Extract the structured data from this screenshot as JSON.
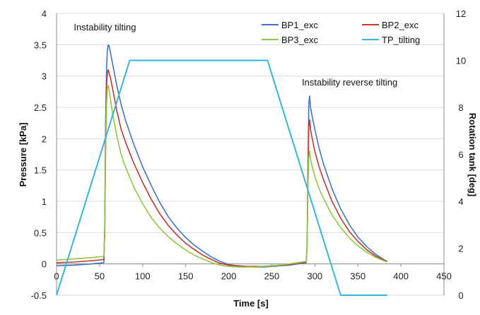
{
  "chart_data": {
    "type": "line",
    "title": "",
    "xlabel": "Time [s]",
    "ylabel": "Pressure [kPa]",
    "y2label": "Rotation tank [deg]",
    "xlim": [
      0,
      450
    ],
    "ylim": [
      -0.5,
      4
    ],
    "y2lim": [
      0,
      12
    ],
    "xticks": [
      0,
      50,
      100,
      150,
      200,
      250,
      300,
      350,
      400,
      450
    ],
    "yticks": [
      -0.5,
      0,
      0.5,
      1,
      1.5,
      2,
      2.5,
      3,
      3.5,
      4
    ],
    "yticklabels": [
      "-0.5",
      "0",
      "0.5",
      "1",
      "1.5",
      "2",
      "2.5",
      "3",
      "3.5",
      "4"
    ],
    "y2ticks": [
      0,
      2,
      4,
      6,
      8,
      10,
      12
    ],
    "grid": "horizontal",
    "legend_position": "top-right",
    "annotations": [
      {
        "text": "Instability tilting",
        "x": 20,
        "y": 3.73
      },
      {
        "text": "Instability reverse tilting",
        "x": 285,
        "y": 2.85
      }
    ],
    "series": [
      {
        "name": "BP1_exc",
        "color": "#4472c4",
        "axis": "left",
        "x": [
          0,
          20,
          40,
          55,
          56,
          57,
          58,
          59,
          60,
          61,
          63,
          65,
          70,
          75,
          80,
          90,
          100,
          110,
          120,
          130,
          140,
          150,
          160,
          170,
          180,
          190,
          200,
          210,
          220,
          230,
          240,
          250,
          260,
          270,
          280,
          290,
          291,
          292,
          293,
          294,
          295,
          297,
          300,
          305,
          310,
          320,
          330,
          340,
          350,
          360,
          370,
          380,
          384
        ],
        "y": [
          -0.03,
          -0.02,
          0.0,
          0.02,
          0.6,
          2.2,
          3.05,
          3.4,
          3.5,
          3.48,
          3.35,
          3.2,
          2.85,
          2.55,
          2.3,
          1.9,
          1.55,
          1.25,
          0.98,
          0.75,
          0.57,
          0.42,
          0.3,
          0.2,
          0.11,
          0.04,
          -0.01,
          -0.03,
          -0.04,
          -0.05,
          -0.05,
          -0.04,
          -0.03,
          -0.02,
          0.0,
          0.02,
          0.3,
          1.5,
          2.55,
          2.68,
          2.5,
          2.35,
          2.15,
          1.85,
          1.6,
          1.2,
          0.88,
          0.63,
          0.43,
          0.28,
          0.16,
          0.07,
          0.04
        ]
      },
      {
        "name": "BP2_exc",
        "color": "#c0392b",
        "axis": "left",
        "x": [
          0,
          20,
          40,
          55,
          56,
          57,
          58,
          59,
          60,
          61,
          63,
          65,
          70,
          75,
          80,
          90,
          100,
          110,
          120,
          130,
          140,
          150,
          160,
          170,
          180,
          190,
          200,
          210,
          220,
          230,
          240,
          250,
          260,
          270,
          280,
          290,
          291,
          292,
          293,
          294,
          295,
          297,
          300,
          305,
          310,
          320,
          330,
          340,
          350,
          360,
          370,
          380,
          384
        ],
        "y": [
          0.02,
          0.03,
          0.05,
          0.07,
          0.55,
          2.0,
          2.8,
          3.05,
          3.1,
          3.05,
          2.95,
          2.8,
          2.45,
          2.15,
          1.95,
          1.6,
          1.3,
          1.03,
          0.8,
          0.61,
          0.46,
          0.33,
          0.23,
          0.14,
          0.07,
          0.01,
          -0.02,
          -0.03,
          -0.04,
          -0.04,
          -0.04,
          -0.03,
          -0.02,
          -0.01,
          0.01,
          0.03,
          0.3,
          1.4,
          2.2,
          2.3,
          2.15,
          2.0,
          1.8,
          1.55,
          1.35,
          1.0,
          0.73,
          0.52,
          0.36,
          0.23,
          0.13,
          0.06,
          0.04
        ]
      },
      {
        "name": "BP3_exc",
        "color": "#92c83e",
        "axis": "left",
        "x": [
          0,
          20,
          40,
          55,
          56,
          57,
          58,
          59,
          60,
          61,
          63,
          65,
          70,
          75,
          80,
          90,
          100,
          110,
          120,
          130,
          140,
          150,
          160,
          170,
          180,
          190,
          200,
          210,
          220,
          230,
          240,
          250,
          260,
          270,
          280,
          290,
          291,
          292,
          293,
          294,
          295,
          297,
          300,
          305,
          310,
          320,
          330,
          340,
          350,
          360,
          370,
          380,
          384
        ],
        "y": [
          0.06,
          0.08,
          0.1,
          0.12,
          0.45,
          1.7,
          2.5,
          2.8,
          2.85,
          2.78,
          2.6,
          2.4,
          2.05,
          1.75,
          1.55,
          1.22,
          0.96,
          0.74,
          0.57,
          0.43,
          0.32,
          0.22,
          0.14,
          0.08,
          0.02,
          -0.02,
          -0.04,
          -0.05,
          -0.05,
          -0.05,
          -0.04,
          -0.03,
          -0.02,
          0.0,
          0.02,
          0.04,
          0.3,
          1.2,
          1.7,
          1.8,
          1.68,
          1.55,
          1.4,
          1.2,
          1.05,
          0.78,
          0.58,
          0.42,
          0.29,
          0.19,
          0.11,
          0.05,
          0.03
        ]
      },
      {
        "name": "TP_tilting",
        "color": "#35b6d6",
        "axis": "right",
        "x": [
          0,
          85,
          245,
          330,
          384
        ],
        "y": [
          0,
          10,
          10,
          0,
          0
        ]
      }
    ]
  }
}
